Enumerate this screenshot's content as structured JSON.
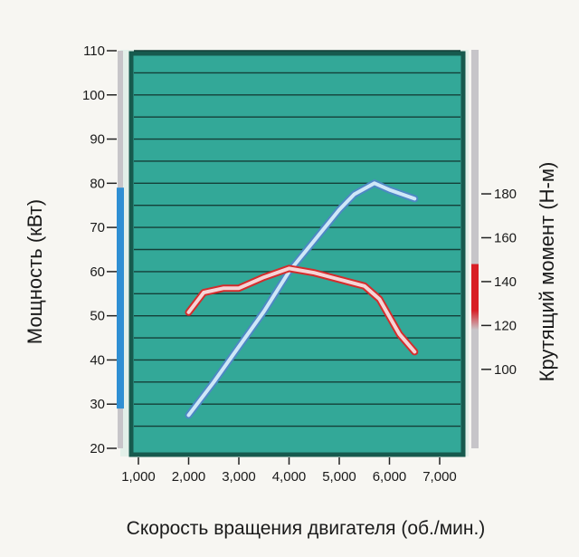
{
  "chart_data": {
    "type": "line",
    "xlabel": "Скорость вращения двигателя (об./мин.)",
    "ylabel_left": "Мощность (кВт)",
    "ylabel_right": "Крутящий момент (Н-м)",
    "xlim": [
      1000,
      7000
    ],
    "ylim_left": [
      20,
      110
    ],
    "ylim_right": [
      64,
      230
    ],
    "x_ticks": [
      {
        "value": 1000,
        "label": "1,000"
      },
      {
        "value": 2000,
        "label": "2,000"
      },
      {
        "value": 3000,
        "label": "3,000"
      },
      {
        "value": 4000,
        "label": "4,000"
      },
      {
        "value": 5000,
        "label": "5,000"
      },
      {
        "value": 6000,
        "label": "6,000"
      },
      {
        "value": 7000,
        "label": "7,000"
      }
    ],
    "y_left_ticks": [
      {
        "value": 20,
        "label": "20"
      },
      {
        "value": 30,
        "label": "30"
      },
      {
        "value": 40,
        "label": "40"
      },
      {
        "value": 50,
        "label": "50"
      },
      {
        "value": 60,
        "label": "60"
      },
      {
        "value": 70,
        "label": "70"
      },
      {
        "value": 80,
        "label": "80"
      },
      {
        "value": 90,
        "label": "90"
      },
      {
        "value": 100,
        "label": "100"
      },
      {
        "value": 110,
        "label": "110"
      }
    ],
    "y_right_ticks": [
      {
        "value": 100,
        "label": "100"
      },
      {
        "value": 120,
        "label": "120"
      },
      {
        "value": 140,
        "label": "140"
      },
      {
        "value": 160,
        "label": "160"
      },
      {
        "value": 180,
        "label": "180"
      }
    ],
    "y_left_highlight": [
      29,
      79
    ],
    "y_right_highlight": [
      118,
      148
    ],
    "grid": true,
    "series": [
      {
        "axis": "left",
        "color": "#cfe7f8",
        "outline": "#4d88c4",
        "x": [
          2000,
          2500,
          3000,
          3500,
          4000,
          4500,
          5000,
          5300,
          5700,
          6000,
          6500
        ],
        "y": [
          27.5,
          35,
          43,
          51,
          60,
          67,
          74,
          77.5,
          80,
          78.5,
          76.5
        ]
      },
      {
        "axis": "right",
        "color": "#f6d4d6",
        "outline": "#d42c2c",
        "x": [
          2000,
          2300,
          2700,
          3000,
          3500,
          4000,
          4500,
          5000,
          5500,
          5800,
          6000,
          6200,
          6500
        ],
        "y": [
          126,
          135,
          137,
          137,
          142,
          146,
          144,
          141,
          138,
          132,
          124,
          116,
          108
        ]
      }
    ]
  }
}
